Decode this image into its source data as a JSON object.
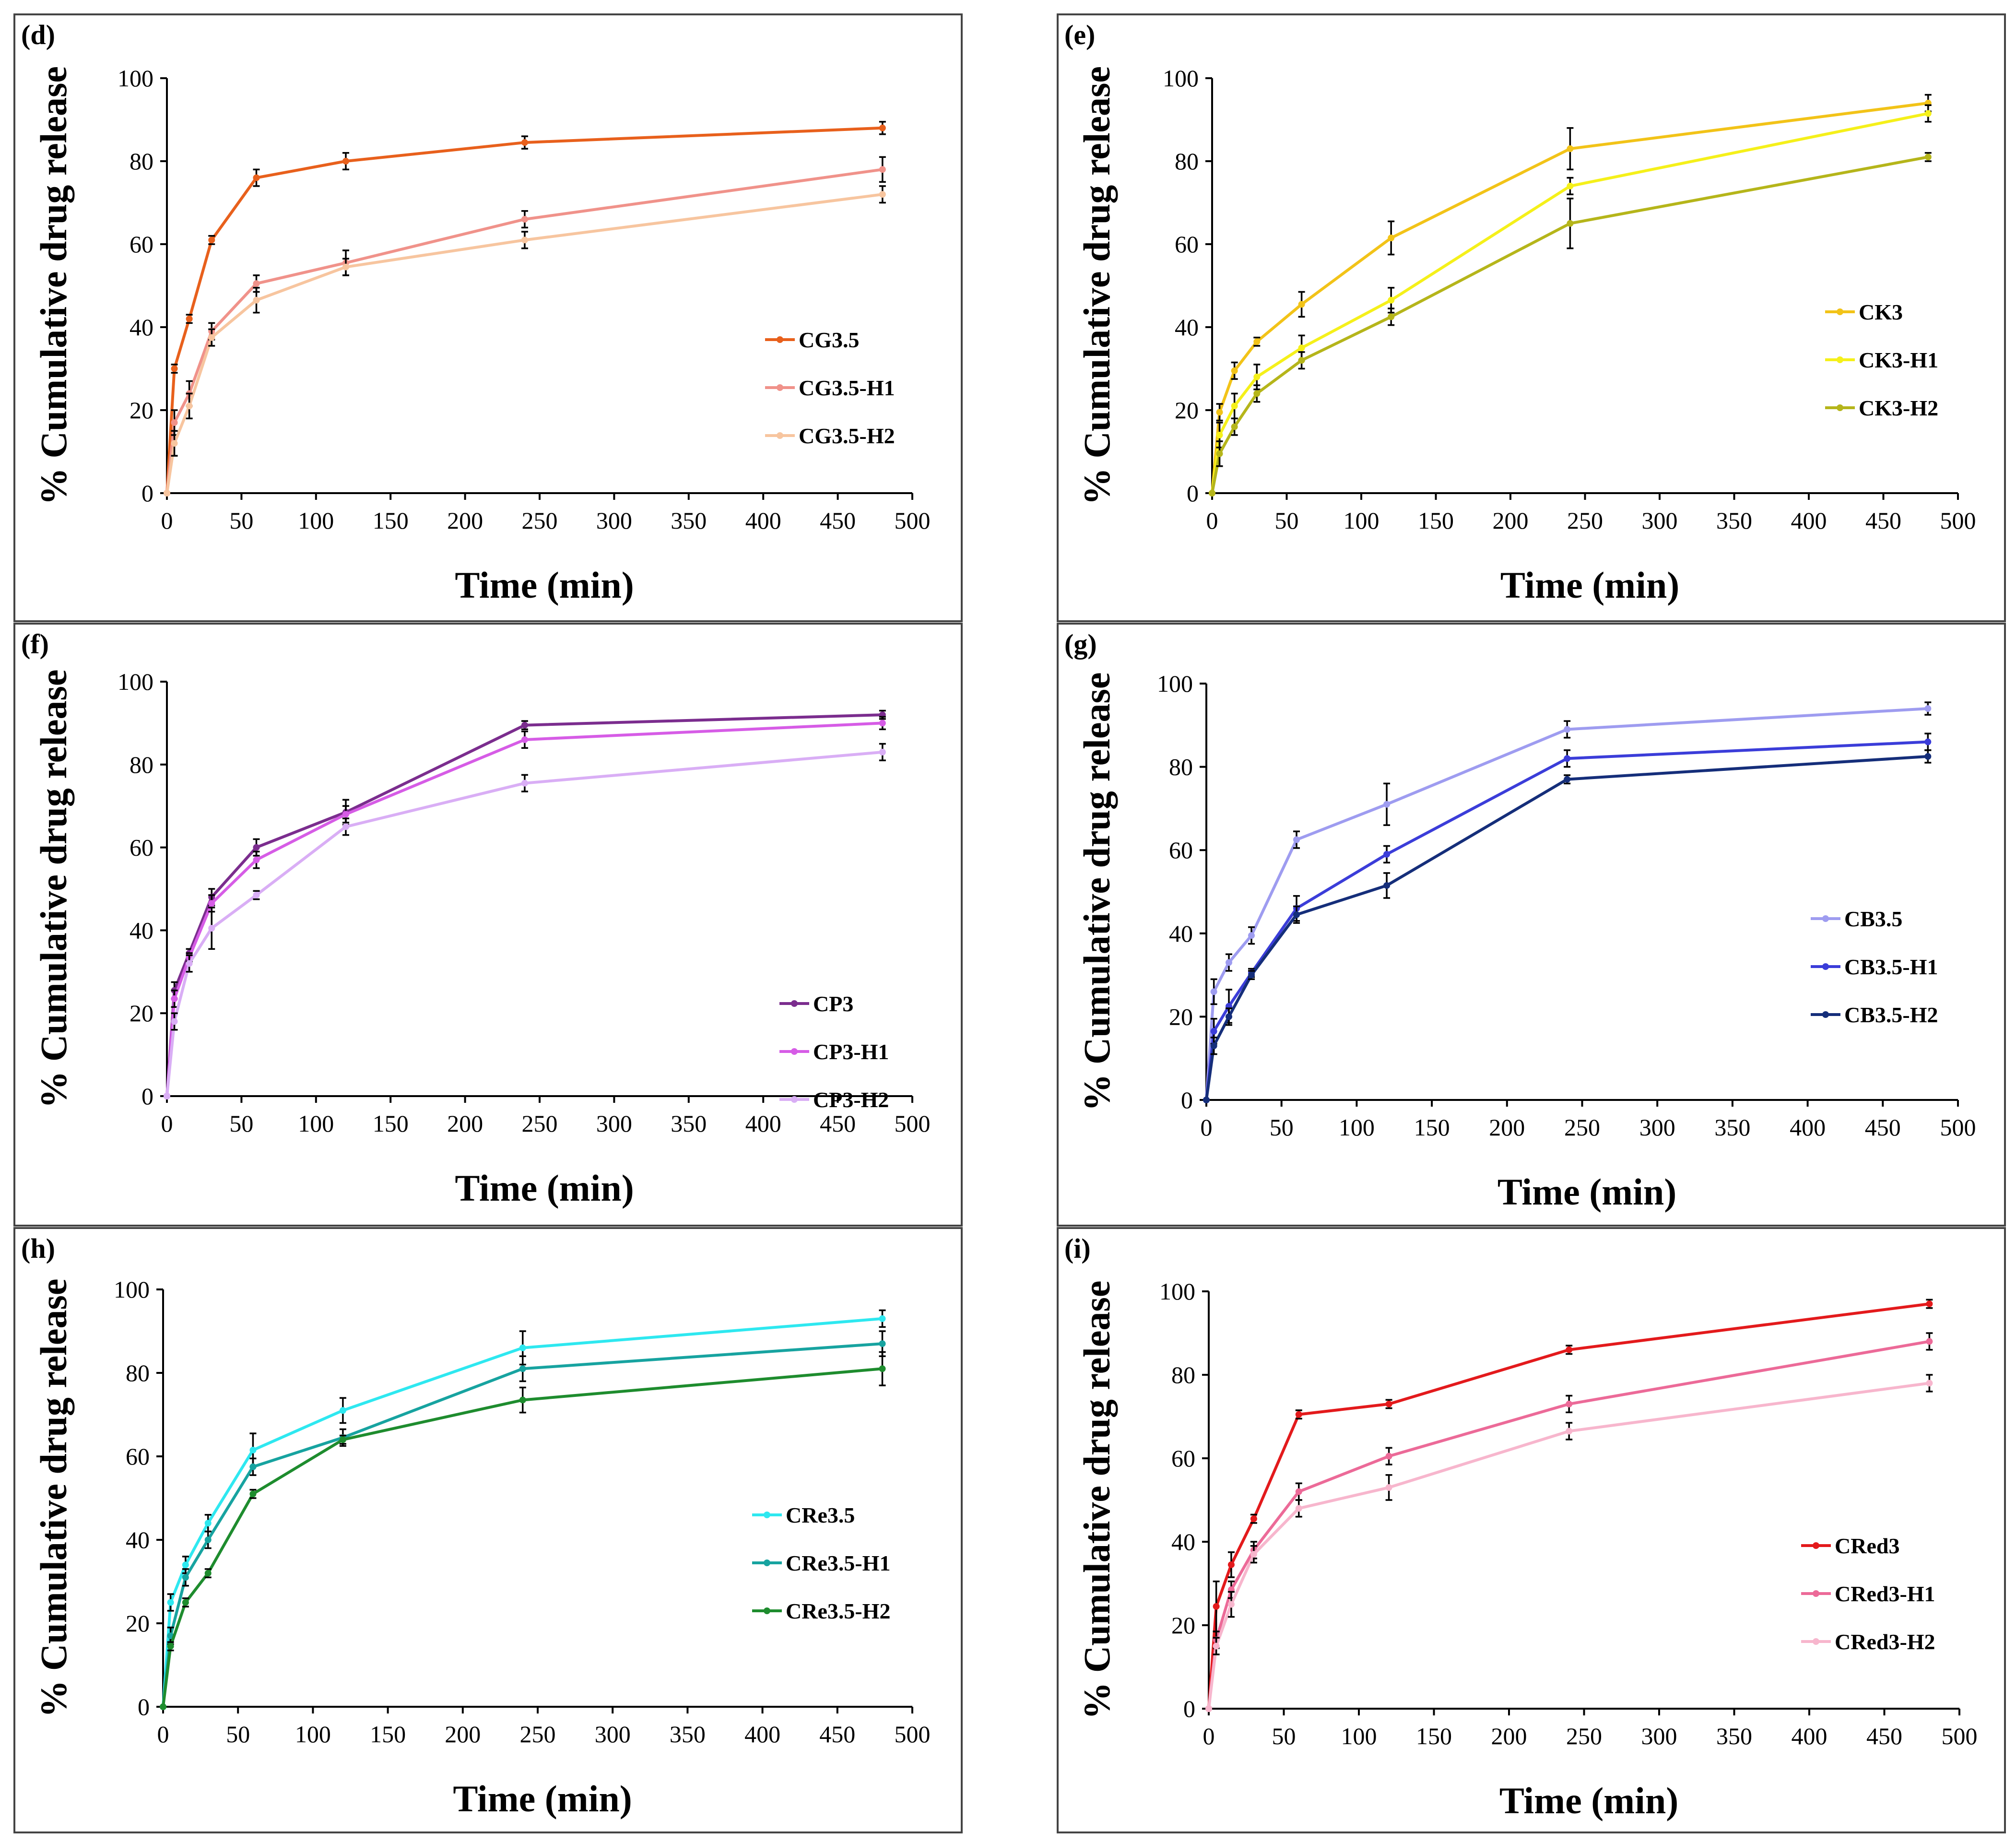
{
  "x_times": [
    0,
    5,
    15,
    30,
    60,
    120,
    240,
    480
  ],
  "chart_data": [
    {
      "type": "line",
      "panel": "(d)",
      "xlabel": "Time (min)",
      "ylabel": "% Cumulative drug release",
      "xlim": [
        0,
        500
      ],
      "ylim": [
        0,
        100
      ],
      "xticks": [
        0,
        50,
        100,
        150,
        200,
        250,
        300,
        350,
        400,
        450,
        500
      ],
      "yticks": [
        0,
        20,
        40,
        60,
        80,
        100
      ],
      "x": [
        0,
        5,
        15,
        30,
        60,
        120,
        240,
        480
      ],
      "series": [
        {
          "name": "CG3.5",
          "color": "#E8601C",
          "values": [
            0,
            30,
            42,
            61,
            76,
            80,
            84.5,
            88
          ],
          "errors": [
            0,
            1,
            1,
            1,
            2,
            2,
            1.5,
            1.5
          ]
        },
        {
          "name": "CG3.5-H1",
          "color": "#F0928A",
          "values": [
            0,
            17,
            24,
            39,
            50.5,
            55.5,
            66,
            78
          ],
          "errors": [
            0,
            3,
            3,
            2,
            2,
            3,
            2,
            3
          ]
        },
        {
          "name": "CG3.5-H2",
          "color": "#F7C59F",
          "values": [
            0,
            12,
            21,
            37.5,
            46.5,
            54.5,
            61,
            72
          ],
          "errors": [
            0,
            3,
            3,
            2,
            3,
            2,
            2,
            2
          ]
        }
      ]
    },
    {
      "type": "line",
      "panel": "(e)",
      "xlabel": "Time (min)",
      "ylabel": "% Cumulative drug release",
      "xlim": [
        0,
        500
      ],
      "ylim": [
        0,
        100
      ],
      "xticks": [
        0,
        50,
        100,
        150,
        200,
        250,
        300,
        350,
        400,
        450,
        500
      ],
      "yticks": [
        0,
        20,
        40,
        60,
        80,
        100
      ],
      "x": [
        0,
        5,
        15,
        30,
        60,
        120,
        240,
        480
      ],
      "series": [
        {
          "name": "CK3",
          "color": "#F2C318",
          "values": [
            0,
            19.5,
            29.5,
            36.5,
            45.5,
            61.5,
            83,
            94
          ],
          "errors": [
            0,
            2,
            2,
            1,
            3,
            4,
            5,
            2
          ]
        },
        {
          "name": "CK3-H1",
          "color": "#F5F01A",
          "values": [
            0,
            14,
            21,
            28,
            35,
            46.5,
            74,
            91.5
          ],
          "errors": [
            0,
            3,
            3,
            3,
            3,
            3,
            2,
            2
          ]
        },
        {
          "name": "CK3-H2",
          "color": "#B5B51A",
          "values": [
            0,
            9.5,
            16,
            24,
            32,
            42.5,
            65,
            81
          ],
          "errors": [
            0,
            3,
            2,
            2,
            2,
            2,
            6,
            1
          ]
        }
      ]
    },
    {
      "type": "line",
      "panel": "(f)",
      "xlabel": "Time (min)",
      "ylabel": "% Cumulative drug release",
      "xlim": [
        0,
        500
      ],
      "ylim": [
        0,
        100
      ],
      "xticks": [
        0,
        50,
        100,
        150,
        200,
        250,
        300,
        350,
        400,
        450,
        500
      ],
      "yticks": [
        0,
        20,
        40,
        60,
        80,
        100
      ],
      "x": [
        0,
        5,
        15,
        30,
        60,
        120,
        240,
        480
      ],
      "series": [
        {
          "name": "CP3",
          "color": "#7B2D8E",
          "values": [
            0,
            25.5,
            34.5,
            48,
            60,
            68.5,
            89.5,
            92
          ],
          "errors": [
            0,
            2,
            1,
            2,
            2,
            3,
            1,
            1
          ]
        },
        {
          "name": "CP3-H1",
          "color": "#D65CE6",
          "values": [
            0,
            23.5,
            33.5,
            46.5,
            57,
            68,
            86,
            90
          ],
          "errors": [
            0,
            2,
            1,
            2,
            2,
            2,
            2,
            1.5
          ]
        },
        {
          "name": "CP3-H2",
          "color": "#D9AEF5",
          "values": [
            0,
            18,
            32,
            40.5,
            48.5,
            65,
            75.5,
            83
          ],
          "errors": [
            0,
            2,
            2,
            5,
            1,
            2,
            2,
            2
          ]
        }
      ]
    },
    {
      "type": "line",
      "panel": "(g)",
      "xlabel": "Time (min)",
      "ylabel": "% Cumulative drug release",
      "xlim": [
        0,
        500
      ],
      "ylim": [
        0,
        100
      ],
      "xticks": [
        0,
        50,
        100,
        150,
        200,
        250,
        300,
        350,
        400,
        450,
        500
      ],
      "yticks": [
        0,
        20,
        40,
        60,
        80,
        100
      ],
      "x": [
        0,
        5,
        15,
        30,
        60,
        120,
        240,
        480
      ],
      "series": [
        {
          "name": "CB3.5",
          "color": "#9E9CF0",
          "values": [
            0,
            26,
            33,
            39.5,
            62.5,
            71,
            89,
            94
          ],
          "errors": [
            0,
            3,
            2,
            2,
            2,
            5,
            2,
            1.5
          ]
        },
        {
          "name": "CB3.5-H1",
          "color": "#3B3DD9",
          "values": [
            0,
            16.5,
            22.5,
            30.5,
            46,
            59,
            82,
            86
          ],
          "errors": [
            0,
            3,
            4,
            1,
            3,
            2,
            2,
            2
          ]
        },
        {
          "name": "CB3.5-H2",
          "color": "#152E7A",
          "values": [
            0,
            13,
            20,
            30,
            44.5,
            51.5,
            77,
            82.5
          ],
          "errors": [
            0,
            2,
            2,
            1,
            2,
            3,
            1,
            1.5
          ]
        }
      ]
    },
    {
      "type": "line",
      "panel": "(h)",
      "xlabel": "Time (min)",
      "ylabel": "% Cumulative drug release",
      "xlim": [
        0,
        500
      ],
      "ylim": [
        0,
        100
      ],
      "xticks": [
        0,
        50,
        100,
        150,
        200,
        250,
        300,
        350,
        400,
        450,
        500
      ],
      "yticks": [
        0,
        20,
        40,
        60,
        80,
        100
      ],
      "x": [
        0,
        5,
        15,
        30,
        60,
        120,
        240,
        480
      ],
      "series": [
        {
          "name": "CRe3.5",
          "color": "#2EE8F0",
          "values": [
            0,
            25,
            34,
            44,
            61.5,
            71,
            86,
            93
          ],
          "errors": [
            0,
            2,
            2,
            2,
            4,
            3,
            4,
            2
          ]
        },
        {
          "name": "CRe3.5-H1",
          "color": "#17A3A0",
          "values": [
            0,
            17,
            31,
            40,
            57.5,
            64.5,
            81,
            87
          ],
          "errors": [
            0,
            2,
            2,
            2,
            2,
            2,
            3,
            3
          ]
        },
        {
          "name": "CRe3.5-H2",
          "color": "#1E8C2E",
          "values": [
            0,
            14.5,
            25,
            32,
            51,
            64,
            73.5,
            81
          ],
          "errors": [
            0,
            1,
            1,
            1,
            1,
            1,
            3,
            4
          ]
        }
      ]
    },
    {
      "type": "line",
      "panel": "(i)",
      "xlabel": "Time (min)",
      "ylabel": "% Cumulative drug release",
      "xlim": [
        0,
        500
      ],
      "ylim": [
        0,
        100
      ],
      "xticks": [
        0,
        50,
        100,
        150,
        200,
        250,
        300,
        350,
        400,
        450,
        500
      ],
      "yticks": [
        0,
        20,
        40,
        60,
        80,
        100
      ],
      "x": [
        0,
        5,
        15,
        30,
        60,
        120,
        240,
        480
      ],
      "series": [
        {
          "name": "CRed3",
          "color": "#E31A1C",
          "values": [
            0,
            24.5,
            34.5,
            45.5,
            70.5,
            73,
            86,
            97
          ],
          "errors": [
            0,
            6,
            3,
            1,
            1,
            1,
            1,
            1
          ]
        },
        {
          "name": "CRed3-H1",
          "color": "#EC6A98",
          "values": [
            0,
            16.5,
            28.5,
            38,
            52,
            60.5,
            73,
            88
          ],
          "errors": [
            0,
            2,
            2,
            2,
            2,
            2,
            2,
            2
          ]
        },
        {
          "name": "CRed3-H2",
          "color": "#F7B6CD",
          "values": [
            0,
            15,
            25,
            37,
            48,
            53,
            66.5,
            78
          ],
          "errors": [
            0,
            2,
            3,
            2,
            2,
            3,
            2,
            2
          ]
        }
      ]
    }
  ]
}
